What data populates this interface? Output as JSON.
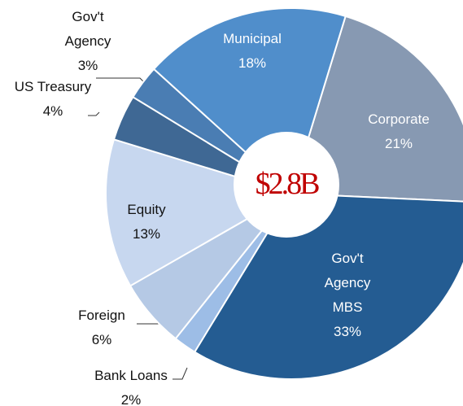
{
  "chart_data": {
    "type": "donut",
    "center_label": "$2.8B",
    "categories": [
      "Corporate",
      "Gov't Agency MBS",
      "Bank Loans",
      "Foreign",
      "Equity",
      "US Treasury",
      "Gov't Agency",
      "Municipal"
    ],
    "values": [
      21,
      33,
      2,
      6,
      13,
      4,
      3,
      18
    ],
    "value_labels": [
      "21%",
      "33%",
      "2%",
      "6%",
      "13%",
      "4%",
      "3%",
      "18%"
    ],
    "colors": [
      "#8799b2",
      "#245c92",
      "#9dbde6",
      "#b5c9e5",
      "#c7d7ef",
      "#3f6894",
      "#4a7db3",
      "#508ecb"
    ]
  }
}
